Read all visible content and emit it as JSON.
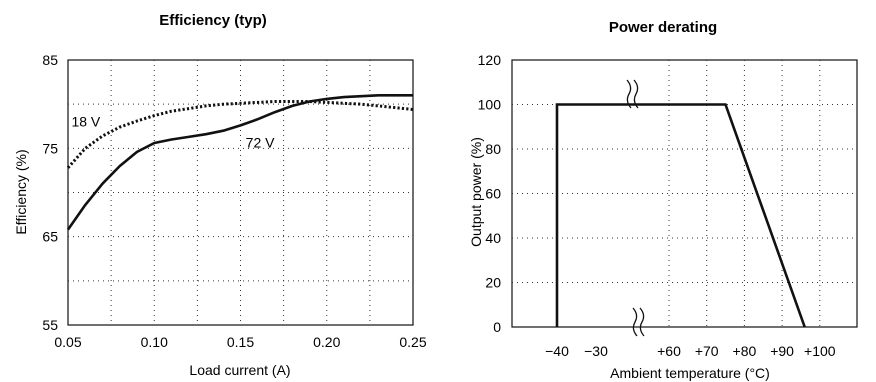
{
  "chart_data": [
    {
      "type": "line",
      "title": "Efficiency (typ)",
      "xlabel": "Load current (A)",
      "ylabel": "Efficiency (%)",
      "xlim": [
        0.05,
        0.25
      ],
      "ylim": [
        55,
        85
      ],
      "xticks": [
        0.05,
        0.1,
        0.15,
        0.2,
        0.25
      ],
      "xtick_labels": [
        "0.05",
        "0.10",
        "0.15",
        "0.20",
        "0.25"
      ],
      "xgrid": [
        0.075,
        0.1,
        0.125,
        0.15,
        0.175,
        0.2,
        0.225
      ],
      "yticks": [
        55,
        65,
        75,
        85
      ],
      "ytick_labels": [
        "55",
        "65",
        "75",
        "85"
      ],
      "ygrid": [
        60,
        65,
        70,
        75,
        80
      ],
      "grid": true,
      "series": [
        {
          "name": "18 V",
          "style": "dotted",
          "x": [
            0.05,
            0.06,
            0.07,
            0.08,
            0.09,
            0.1,
            0.11,
            0.12,
            0.13,
            0.14,
            0.15,
            0.16,
            0.17,
            0.18,
            0.19,
            0.2,
            0.21,
            0.22,
            0.23,
            0.24,
            0.25
          ],
          "y": [
            72.8,
            75.0,
            76.4,
            77.4,
            78.1,
            78.7,
            79.2,
            79.5,
            79.8,
            80.0,
            80.1,
            80.2,
            80.3,
            80.3,
            80.3,
            80.2,
            80.1,
            80.0,
            79.8,
            79.6,
            79.4
          ]
        },
        {
          "name": "72 V",
          "style": "solid",
          "x": [
            0.05,
            0.06,
            0.07,
            0.08,
            0.09,
            0.1,
            0.11,
            0.12,
            0.13,
            0.14,
            0.15,
            0.16,
            0.17,
            0.18,
            0.19,
            0.2,
            0.21,
            0.22,
            0.23,
            0.24,
            0.25
          ],
          "y": [
            65.8,
            68.6,
            71.0,
            73.0,
            74.6,
            75.6,
            76.0,
            76.3,
            76.6,
            77.0,
            77.6,
            78.3,
            79.1,
            79.8,
            80.3,
            80.6,
            80.8,
            80.9,
            81.0,
            81.0,
            81.0
          ]
        }
      ],
      "annotations": [
        {
          "text": "18 V",
          "x": 0.052,
          "y": 77.5
        },
        {
          "text": "72 V",
          "x": 0.153,
          "y": 75.1
        }
      ]
    },
    {
      "type": "line",
      "title": "Power derating",
      "xlabel": "Ambient temperature (°C)",
      "ylabel": "Output power (%)",
      "ylim": [
        0,
        120
      ],
      "yticks": [
        0,
        20,
        40,
        60,
        80,
        100,
        120
      ],
      "ytick_labels": [
        "0",
        "20",
        "40",
        "60",
        "80",
        "100",
        "120"
      ],
      "ygrid": [
        20,
        40,
        60,
        80,
        100
      ],
      "xtick_labels": [
        "−40",
        "−30",
        "+60",
        "+70",
        "+80",
        "+90",
        "+100"
      ],
      "x_axis_break": "between −30 and +60",
      "grid": true,
      "series": [
        {
          "name": "",
          "style": "solid",
          "x": [
            -40,
            -40,
            75,
            96
          ],
          "y": [
            0,
            100,
            100,
            0
          ]
        }
      ]
    }
  ]
}
